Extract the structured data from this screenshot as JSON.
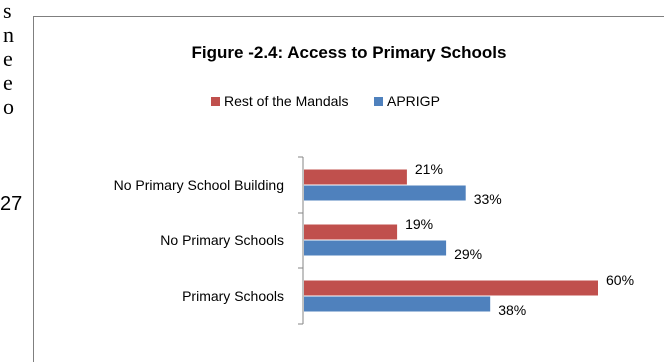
{
  "background_text": {
    "fragments": [
      "s",
      "n",
      "e",
      "e",
      "o"
    ],
    "number": "27"
  },
  "colors": {
    "rest": "#C0504D",
    "aprigp": "#4F81BD",
    "axis": "#868686"
  },
  "chart_data": {
    "type": "bar",
    "orientation": "horizontal",
    "title": "Figure -2.4: Access to Primary Schools",
    "categories": [
      "No Primary School Building",
      "No Primary Schools",
      "Primary Schools"
    ],
    "series": [
      {
        "name": "Rest of the Mandals",
        "values": [
          21,
          19,
          60
        ],
        "labels": [
          "21%",
          "19%",
          "60%"
        ]
      },
      {
        "name": "APRIGP",
        "values": [
          33,
          29,
          38
        ],
        "labels": [
          "33%",
          "29%",
          "38%"
        ]
      }
    ],
    "value_unit": "%",
    "xlim": [
      0,
      70
    ],
    "legend_position": "top",
    "grid": false
  }
}
